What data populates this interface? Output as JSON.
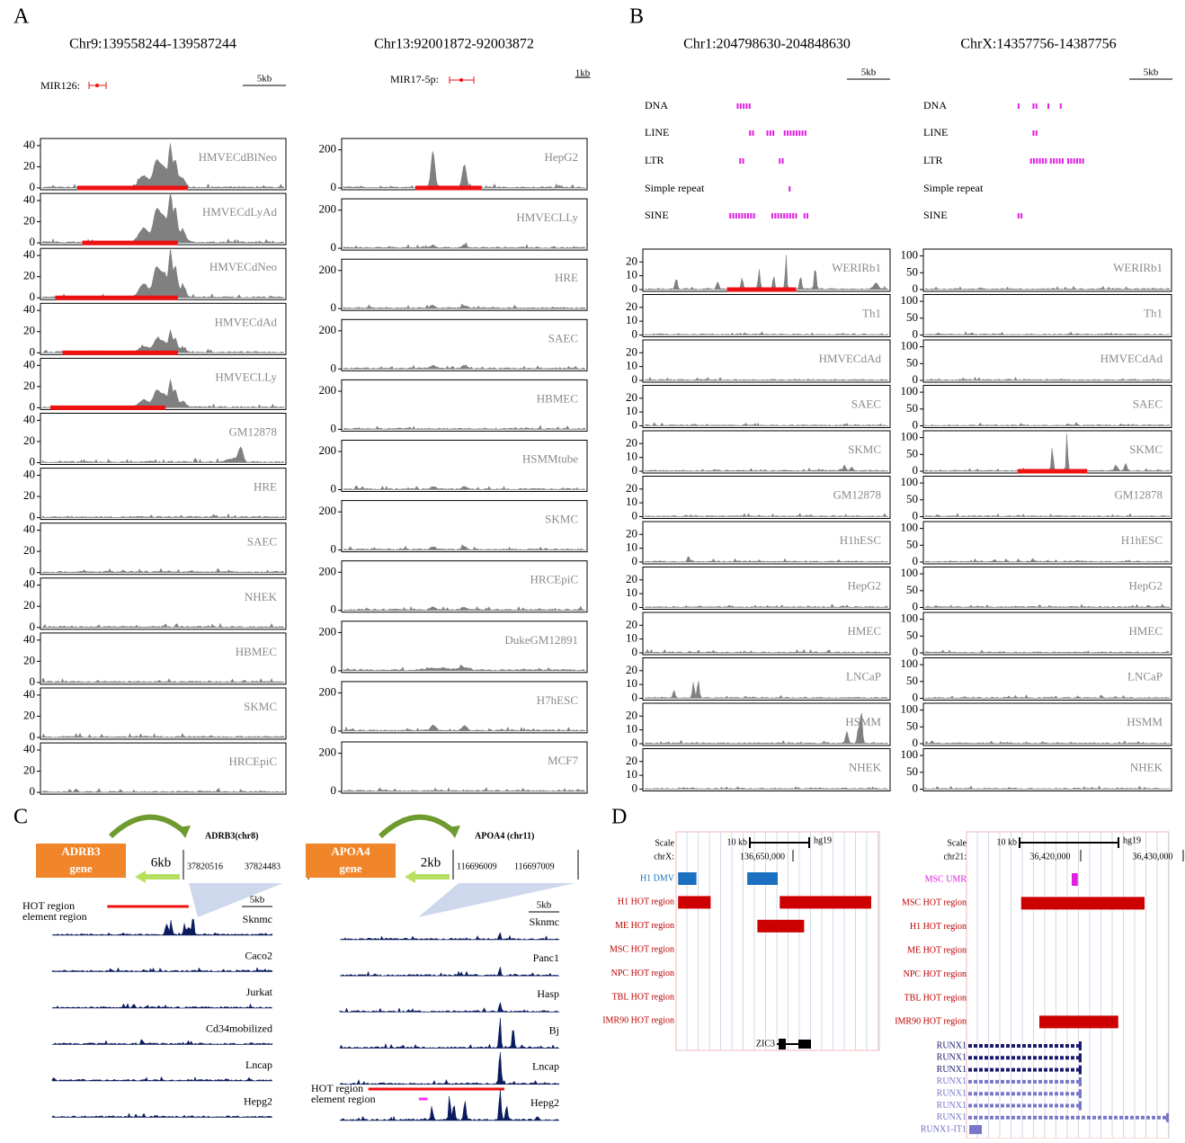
{
  "panels": {
    "A": {
      "label": "A",
      "columns": [
        {
          "title": "Chr9:139558244-139587244",
          "gene": "MIR126:",
          "scale": "5kb",
          "ylim": [
            0,
            45
          ],
          "yticks": [
            0,
            20,
            40
          ],
          "tracks": [
            "HMVECdBlNeo",
            "HMVECdLyAd",
            "HMVECdNeo",
            "HMVECdAd",
            "HMVECLLy",
            "GM12878",
            "HRE",
            "SAEC",
            "NHEK",
            "HBMEC",
            "SKMC",
            "HRCEpiC"
          ]
        },
        {
          "title": "Chr13:92001872-92003872",
          "gene": "MIR17-5p:",
          "scale": "1kb",
          "ylim": [
            0,
            250
          ],
          "yticks": [
            0,
            200
          ],
          "tracks": [
            "HepG2",
            "HMVECLLy",
            "HRE",
            "SAEC",
            "HBMEC",
            "HSMMtube",
            "SKMC",
            "HRCEpiC",
            "DukeGM12891",
            "H7hESC",
            "MCF7"
          ]
        }
      ]
    },
    "B": {
      "label": "B",
      "columns": [
        {
          "title": "Chr1:204798630-204848630",
          "scale": "5kb",
          "repeats": [
            "DNA",
            "LINE",
            "LTR",
            "Simple repeat",
            "SINE"
          ],
          "ylim": [
            0,
            28
          ],
          "yticks": [
            0,
            10,
            20
          ],
          "tracks": [
            "WERIRb1",
            "Th1",
            "HMVECdAd",
            "SAEC",
            "SKMC",
            "GM12878",
            "H1hESC",
            "HepG2",
            "HMEC",
            "LNCaP",
            "HSMM",
            "NHEK"
          ]
        },
        {
          "title": "ChrX:14357756-14387756",
          "scale": "5kb",
          "repeats": [
            "DNA",
            "LINE",
            "LTR",
            "Simple repeat",
            "SINE"
          ],
          "ylim": [
            0,
            115
          ],
          "yticks": [
            0,
            50,
            100
          ],
          "tracks": [
            "WERIRb1",
            "Th1",
            "HMVECdAd",
            "SAEC",
            "SKMC",
            "GM12878",
            "H1hESC",
            "HepG2",
            "HMEC",
            "LNCaP",
            "HSMM",
            "NHEK"
          ]
        }
      ]
    },
    "C": {
      "label": "C",
      "columns": [
        {
          "gene_box": [
            "ADRB3",
            "gene"
          ],
          "distance": "6kb",
          "locus": "ADRB3(chr8)",
          "coords": [
            "37820516",
            "37824483"
          ],
          "hot": "HOT region",
          "element": "element region",
          "scale": "5kb",
          "tracks": [
            "Sknmc",
            "Caco2",
            "Jurkat",
            "Cd34mobilized",
            "Lncap",
            "Hepg2"
          ]
        },
        {
          "gene_box": [
            "APOA4",
            "gene"
          ],
          "distance": "2kb",
          "locus": "APOA4 (chr11)",
          "coords": [
            "116696009",
            "116697009"
          ],
          "hot": "HOT region",
          "element": "element region",
          "scale": "5kb",
          "tracks": [
            "Sknmc",
            "Panc1",
            "Hasp",
            "Bj",
            "Lncap",
            "Hepg2"
          ]
        }
      ]
    },
    "D": {
      "label": "D",
      "columns": [
        {
          "scale": "Scale",
          "scale_size": "10 kb",
          "assembly": "hg19",
          "chrom": "chrX:",
          "positions": [
            "136,650,000"
          ],
          "rows": [
            "H1 DMV",
            "H1 HOT region",
            "ME HOT region",
            "MSC HOT region",
            "NPC HOT region",
            "TBL HOT region",
            "IMR90 HOT region"
          ],
          "genes": [
            "ZIC3"
          ]
        },
        {
          "scale": "Scale",
          "scale_size": "10 kb",
          "assembly": "hg19",
          "chrom": "chr21:",
          "positions": [
            "36,420,000",
            "36,430,000"
          ],
          "rows": [
            "MSC UMR",
            "MSC HOT region",
            "H1 HOT region",
            "ME HOT region",
            "NPC HOT region",
            "TBL HOT region",
            "IMR90 HOT region"
          ],
          "genes": [
            "RUNX1",
            "RUNX1",
            "RUNX1",
            "RUNX1",
            "RUNX1",
            "RUNX1",
            "RUNX1",
            "RUNX1-IT1"
          ]
        }
      ]
    }
  }
}
